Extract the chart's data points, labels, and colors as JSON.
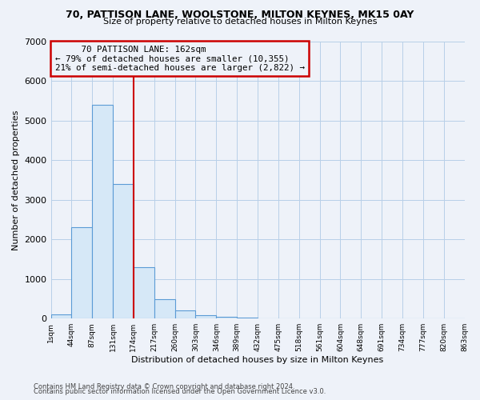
{
  "title_line1": "70, PATTISON LANE, WOOLSTONE, MILTON KEYNES, MK15 0AY",
  "title_line2": "Size of property relative to detached houses in Milton Keynes",
  "xlabel": "Distribution of detached houses by size in Milton Keynes",
  "ylabel": "Number of detached properties",
  "bar_values": [
    100,
    2300,
    5400,
    3400,
    1300,
    480,
    200,
    80,
    50,
    20,
    10,
    5,
    3,
    2,
    1,
    1,
    1,
    1,
    1,
    1
  ],
  "bin_labels": [
    "1sqm",
    "44sqm",
    "87sqm",
    "131sqm",
    "174sqm",
    "217sqm",
    "260sqm",
    "303sqm",
    "346sqm",
    "389sqm",
    "432sqm",
    "475sqm",
    "518sqm",
    "561sqm",
    "604sqm",
    "648sqm",
    "691sqm",
    "734sqm",
    "777sqm",
    "820sqm",
    "863sqm"
  ],
  "bar_color_face": "#d6e8f7",
  "bar_color_edge": "#5b9bd5",
  "vline_x": 4,
  "vline_color": "#cc0000",
  "annotation_line1": "     70 PATTISON LANE: 162sqm",
  "annotation_line2": "← 79% of detached houses are smaller (10,355)",
  "annotation_line3": "21% of semi-detached houses are larger (2,822) →",
  "annotation_box_color": "#cc0000",
  "ylim": [
    0,
    7000
  ],
  "yticks": [
    0,
    1000,
    2000,
    3000,
    4000,
    5000,
    6000,
    7000
  ],
  "grid_color": "#b8cfe8",
  "background_color": "#eef2f9",
  "footer_line1": "Contains HM Land Registry data © Crown copyright and database right 2024.",
  "footer_line2": "Contains public sector information licensed under the Open Government Licence v3.0."
}
